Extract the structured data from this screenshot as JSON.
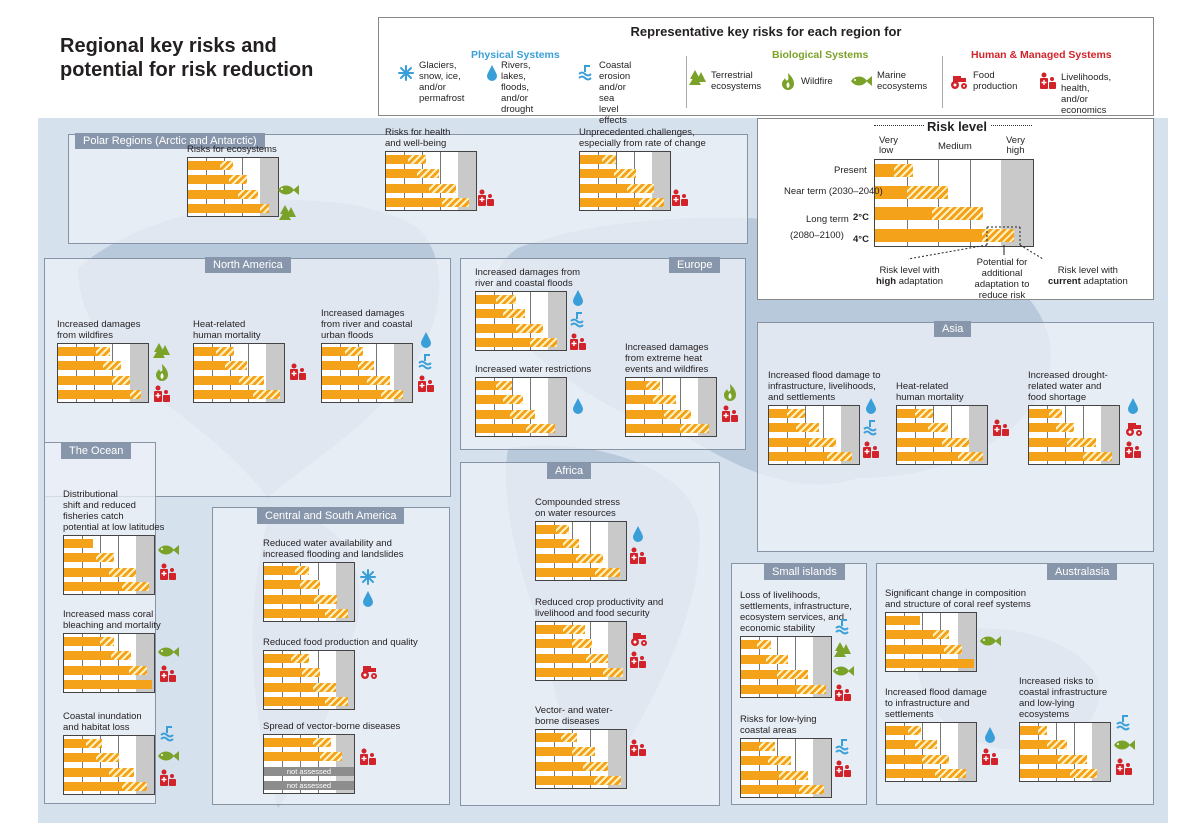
{
  "title": {
    "line1": "Regional key risks and",
    "line2": "potential for risk reduction"
  },
  "legend": {
    "heading": "Representative key risks for each region for",
    "categories": {
      "physical": "Physical Systems",
      "biological": "Biological Systems",
      "human": "Human & Managed Systems"
    },
    "colors": {
      "physical": "#3a9fd8",
      "biological": "#7aa229",
      "human": "#d2232a"
    },
    "items": {
      "glaciers": "Glaciers,\nsnow, ice,\nand/or\npermafrost",
      "rivers": "Rivers, lakes,\nfloods, and/or\ndrought",
      "coastal": "Coastal erosion\nand/or sea level\neffects",
      "terrestrial": "Terrestrial\necosystems",
      "wildfire": "Wildfire",
      "marine": "Marine\necosystems",
      "food": "Food\nproduction",
      "livelihoods": "Livelihoods, health,\nand/or economics"
    }
  },
  "scale": {
    "heading": "Risk level",
    "columns": [
      "Very\nlow",
      "Medium",
      "Very\nhigh"
    ],
    "rows": {
      "present": "Present",
      "near": "Near term (2030–2040)",
      "long": "Long term",
      "long_period": "(2080–2100)",
      "t2": "2°C",
      "t4": "4°C"
    },
    "notes": {
      "high_a": "Risk level with",
      "high_b": "high",
      "high_c": " adaptation",
      "potential": "Potential for\nadditional\nadaptation to\nreduce risk",
      "current_a": "Risk level with",
      "current_b": "current",
      "current_c": " adaptation"
    },
    "example": {
      "present": [
        0.12,
        0.24
      ],
      "near": [
        0.2,
        0.46
      ],
      "t2": [
        0.36,
        0.68
      ],
      "t4": [
        0.68,
        0.88
      ]
    }
  },
  "regions": {
    "polar": {
      "label": "Polar Regions (Arctic and Antarctic)",
      "risks": [
        {
          "title": "Risks for ecosystems",
          "icons": [
            "marine-icon",
            "terrestrial-icon"
          ],
          "levels": [
            [
              0.36,
              0.5
            ],
            [
              0.46,
              0.66
            ],
            [
              0.56,
              0.78
            ],
            [
              0.8,
              0.9
            ]
          ]
        },
        {
          "title": "Risks for health\nand well-being",
          "icons": [
            "livelihoods-icon"
          ],
          "levels": [
            [
              0.24,
              0.44
            ],
            [
              0.34,
              0.58
            ],
            [
              0.48,
              0.78
            ],
            [
              0.62,
              0.92
            ]
          ]
        },
        {
          "title": "Unprecedented challenges,\nespecially from rate of change",
          "icons": [
            "livelihoods-icon"
          ],
          "levels": [
            [
              0.24,
              0.4
            ],
            [
              0.38,
              0.62
            ],
            [
              0.52,
              0.82
            ],
            [
              0.66,
              0.94
            ]
          ]
        }
      ]
    },
    "north_america": {
      "label": "North America",
      "risks": [
        {
          "title": "Increased damages\nfrom wildfires",
          "icons": [
            "terrestrial-icon",
            "wildfire-icon",
            "livelihoods-icon"
          ],
          "levels": [
            [
              0.42,
              0.58
            ],
            [
              0.5,
              0.7
            ],
            [
              0.6,
              0.8
            ],
            [
              0.8,
              0.92
            ]
          ]
        },
        {
          "title": "Heat-related\nhuman mortality",
          "icons": [
            "livelihoods-icon"
          ],
          "levels": [
            [
              0.24,
              0.44
            ],
            [
              0.34,
              0.58
            ],
            [
              0.5,
              0.78
            ],
            [
              0.66,
              0.96
            ]
          ]
        },
        {
          "title": "Increased damages\nfrom river and coastal\nurban floods",
          "icons": [
            "rivers-icon",
            "coastal-icon",
            "livelihoods-icon"
          ],
          "levels": [
            [
              0.26,
              0.46
            ],
            [
              0.4,
              0.58
            ],
            [
              0.5,
              0.76
            ],
            [
              0.66,
              0.9
            ]
          ]
        }
      ]
    },
    "europe": {
      "label": "Europe",
      "risks": [
        {
          "title": "Increased damages from\nriver and coastal floods",
          "icons": [
            "rivers-icon",
            "coastal-icon",
            "livelihoods-icon"
          ],
          "levels": [
            [
              0.22,
              0.44
            ],
            [
              0.3,
              0.54
            ],
            [
              0.44,
              0.74
            ],
            [
              0.6,
              0.9
            ]
          ]
        },
        {
          "title": "Increased water restrictions",
          "icons": [
            "rivers-icon"
          ],
          "levels": [
            [
              0.22,
              0.4
            ],
            [
              0.3,
              0.52
            ],
            [
              0.38,
              0.66
            ],
            [
              0.56,
              0.88
            ]
          ]
        },
        {
          "title": "Increased damages\nfrom extreme heat\nevents and wildfires",
          "icons": [
            "wildfire-icon",
            "livelihoods-icon"
          ],
          "levels": [
            [
              0.22,
              0.38
            ],
            [
              0.3,
              0.56
            ],
            [
              0.42,
              0.72
            ],
            [
              0.6,
              0.92
            ]
          ]
        }
      ]
    },
    "asia": {
      "label": "Asia",
      "risks": [
        {
          "title": "Increased flood damage to\ninfrastructure, livelihoods,\nand settlements",
          "icons": [
            "rivers-icon",
            "coastal-icon",
            "livelihoods-icon"
          ],
          "levels": [
            [
              0.2,
              0.4
            ],
            [
              0.3,
              0.56
            ],
            [
              0.44,
              0.74
            ],
            [
              0.64,
              0.92
            ]
          ]
        },
        {
          "title": "Heat-related\nhuman mortality",
          "icons": [
            "livelihoods-icon"
          ],
          "levels": [
            [
              0.2,
              0.4
            ],
            [
              0.34,
              0.56
            ],
            [
              0.5,
              0.8
            ],
            [
              0.68,
              0.96
            ]
          ]
        },
        {
          "title": "Increased drought-\nrelated water and\nfood shortage",
          "icons": [
            "rivers-icon",
            "food-icon",
            "livelihoods-icon"
          ],
          "levels": [
            [
              0.22,
              0.36
            ],
            [
              0.3,
              0.5
            ],
            [
              0.42,
              0.74
            ],
            [
              0.6,
              0.92
            ]
          ]
        }
      ]
    },
    "ocean": {
      "label": "The Ocean",
      "risks": [
        {
          "title": "Distributional\nshift and reduced\nfisheries catch\npotential at low latitudes",
          "icons": [
            "marine-icon",
            "livelihoods-icon"
          ],
          "levels": [
            [
              0.32,
              0.32
            ],
            [
              0.36,
              0.56
            ],
            [
              0.5,
              0.8
            ],
            [
              0.64,
              0.94
            ]
          ]
        },
        {
          "title": "Increased mass coral\nbleaching and mortality",
          "icons": [
            "marine-icon",
            "livelihoods-icon"
          ],
          "levels": [
            [
              0.4,
              0.56
            ],
            [
              0.52,
              0.74
            ],
            [
              0.72,
              0.92
            ],
            [
              0.98,
              0.98
            ]
          ]
        },
        {
          "title": "Coastal inundation\nand habitat loss",
          "icons": [
            "coastal-icon",
            "marine-icon",
            "livelihoods-icon"
          ],
          "levels": [
            [
              0.24,
              0.42
            ],
            [
              0.36,
              0.62
            ],
            [
              0.5,
              0.78
            ],
            [
              0.64,
              0.92
            ]
          ]
        }
      ]
    },
    "central_south_america": {
      "label": "Central and South America",
      "risks": [
        {
          "title": "Reduced water availability and\nincreased flooding and landslides",
          "icons": [
            "glaciers-icon",
            "rivers-icon"
          ],
          "levels": [
            [
              0.34,
              0.5
            ],
            [
              0.4,
              0.62
            ],
            [
              0.56,
              0.82
            ],
            [
              0.68,
              0.94
            ]
          ]
        },
        {
          "title": "Reduced food production and quality",
          "icons": [
            "food-icon"
          ],
          "levels": [
            [
              0.3,
              0.5
            ],
            [
              0.42,
              0.62
            ],
            [
              0.54,
              0.8
            ],
            [
              0.68,
              0.94
            ]
          ]
        },
        {
          "title": "Spread of vector-borne diseases",
          "icons": [
            "livelihoods-icon"
          ],
          "levels": [
            [
              0.54,
              0.74
            ],
            [
              0.62,
              0.86
            ]
          ],
          "not_assessed": "not assessed",
          "not_assessed_2": "not assessed"
        }
      ]
    },
    "africa": {
      "label": "Africa",
      "risks": [
        {
          "title": "Compounded stress\non water resources",
          "icons": [
            "rivers-icon",
            "livelihoods-icon"
          ],
          "levels": [
            [
              0.22,
              0.36
            ],
            [
              0.3,
              0.48
            ],
            [
              0.44,
              0.74
            ],
            [
              0.66,
              0.94
            ]
          ]
        },
        {
          "title": "Reduced crop productivity and\nlivelihood and food security",
          "icons": [
            "food-icon",
            "livelihoods-icon"
          ],
          "levels": [
            [
              0.3,
              0.54
            ],
            [
              0.4,
              0.62
            ],
            [
              0.56,
              0.8
            ],
            [
              0.74,
              0.96
            ]
          ]
        },
        {
          "title": "Vector- and water-\nborne diseases",
          "icons": [
            "livelihoods-icon"
          ],
          "levels": [
            [
              0.28,
              0.46
            ],
            [
              0.4,
              0.66
            ],
            [
              0.52,
              0.8
            ],
            [
              0.64,
              0.94
            ]
          ]
        }
      ]
    },
    "small_islands": {
      "label": "Small islands",
      "risks": [
        {
          "title": "Loss of livelihoods,\nsettlements, infrastructure,\necosystem services, and\neconomic stability",
          "icons": [
            "coastal-icon",
            "terrestrial-icon",
            "marine-icon",
            "livelihoods-icon"
          ],
          "levels": [
            [
              0.18,
              0.34
            ],
            [
              0.28,
              0.52
            ],
            [
              0.4,
              0.74
            ],
            [
              0.62,
              0.94
            ]
          ]
        },
        {
          "title": "Risks for low-lying\ncoastal areas",
          "icons": [
            "coastal-icon",
            "livelihoods-icon"
          ],
          "levels": [
            [
              0.2,
              0.38
            ],
            [
              0.3,
              0.56
            ],
            [
              0.42,
              0.74
            ],
            [
              0.64,
              0.92
            ]
          ]
        }
      ]
    },
    "australasia": {
      "label": "Australasia",
      "risks": [
        {
          "title": "Significant change in composition\nand structure of coral reef systems",
          "icons": [
            "marine-icon"
          ],
          "levels": [
            [
              0.38,
              0.38
            ],
            [
              0.52,
              0.7
            ],
            [
              0.64,
              0.84
            ],
            [
              0.98,
              0.98
            ]
          ]
        },
        {
          "title": "Increased flood damage\nto infrastructure and\nsettlements",
          "icons": [
            "rivers-icon",
            "livelihoods-icon"
          ],
          "levels": [
            [
              0.24,
              0.38
            ],
            [
              0.32,
              0.56
            ],
            [
              0.4,
              0.7
            ],
            [
              0.54,
              0.88
            ]
          ]
        },
        {
          "title": "Increased risks to\ncoastal infrastructure\nand low-lying\necosystems",
          "icons": [
            "coastal-icon",
            "marine-icon",
            "livelihoods-icon"
          ],
          "levels": [
            [
              0.2,
              0.3
            ],
            [
              0.3,
              0.52
            ],
            [
              0.42,
              0.74
            ],
            [
              0.56,
              0.86
            ]
          ]
        }
      ]
    }
  }
}
